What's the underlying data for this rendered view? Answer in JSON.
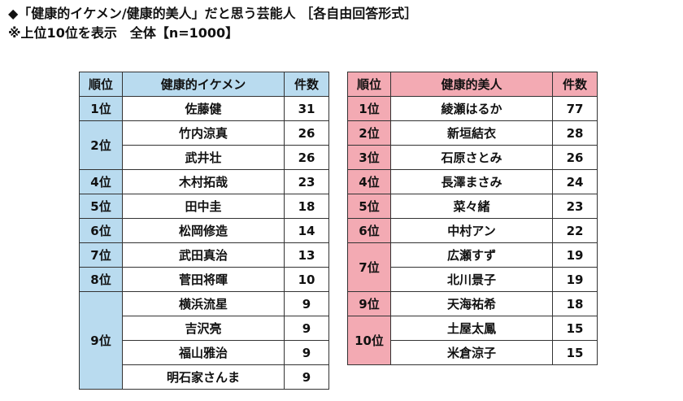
{
  "title": {
    "line1": "◆「健康的イケメン/健康的美人」だと思う芸能人 ［各自由回答形式］",
    "line2": "※上位10位を表示　全体【n=1000】"
  },
  "male_table": {
    "headers": {
      "rank": "順位",
      "name": "健康的イケメン",
      "count": "件数"
    },
    "groups": [
      {
        "rank": "1位",
        "rows": [
          {
            "name": "佐藤健",
            "count": "31"
          }
        ]
      },
      {
        "rank": "2位",
        "rows": [
          {
            "name": "竹内涼真",
            "count": "26"
          },
          {
            "name": "武井壮",
            "count": "26"
          }
        ]
      },
      {
        "rank": "4位",
        "rows": [
          {
            "name": "木村拓哉",
            "count": "23"
          }
        ]
      },
      {
        "rank": "5位",
        "rows": [
          {
            "name": "田中圭",
            "count": "18"
          }
        ]
      },
      {
        "rank": "6位",
        "rows": [
          {
            "name": "松岡修造",
            "count": "14"
          }
        ]
      },
      {
        "rank": "7位",
        "rows": [
          {
            "name": "武田真治",
            "count": "13"
          }
        ]
      },
      {
        "rank": "8位",
        "rows": [
          {
            "name": "菅田将暉",
            "count": "10"
          }
        ]
      },
      {
        "rank": "9位",
        "rows": [
          {
            "name": "横浜流星",
            "count": "9"
          },
          {
            "name": "吉沢亮",
            "count": "9"
          },
          {
            "name": "福山雅治",
            "count": "9"
          },
          {
            "name": "明石家さんま",
            "count": "9"
          }
        ]
      }
    ]
  },
  "female_table": {
    "headers": {
      "rank": "順位",
      "name": "健康的美人",
      "count": "件数"
    },
    "groups": [
      {
        "rank": "1位",
        "rows": [
          {
            "name": "綾瀬はるか",
            "count": "77"
          }
        ]
      },
      {
        "rank": "2位",
        "rows": [
          {
            "name": "新垣結衣",
            "count": "28"
          }
        ]
      },
      {
        "rank": "3位",
        "rows": [
          {
            "name": "石原さとみ",
            "count": "26"
          }
        ]
      },
      {
        "rank": "4位",
        "rows": [
          {
            "name": "長澤まさみ",
            "count": "24"
          }
        ]
      },
      {
        "rank": "5位",
        "rows": [
          {
            "name": "菜々緒",
            "count": "23"
          }
        ]
      },
      {
        "rank": "6位",
        "rows": [
          {
            "name": "中村アン",
            "count": "22"
          }
        ]
      },
      {
        "rank": "7位",
        "rows": [
          {
            "name": "広瀬すず",
            "count": "19"
          },
          {
            "name": "北川景子",
            "count": "19"
          }
        ]
      },
      {
        "rank": "9位",
        "rows": [
          {
            "name": "天海祐希",
            "count": "18"
          }
        ]
      },
      {
        "rank": "10位",
        "rows": [
          {
            "name": "土屋太鳳",
            "count": "15"
          },
          {
            "name": "米倉涼子",
            "count": "15"
          }
        ]
      }
    ]
  },
  "colors": {
    "male_header": "#b9dbef",
    "female_header": "#f3aab3"
  }
}
